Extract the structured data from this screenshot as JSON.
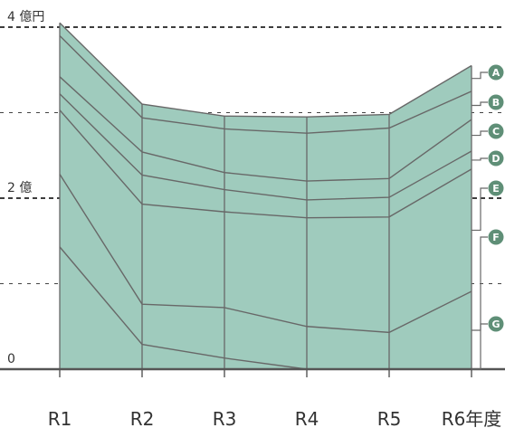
{
  "chart_data": {
    "type": "area",
    "categories": [
      "R1",
      "R2",
      "R3",
      "R4",
      "R5",
      "R6年度"
    ],
    "y_tick_labels": [
      {
        "value": 0,
        "label": "0"
      },
      {
        "value": 2,
        "label": "2 億"
      },
      {
        "value": 4,
        "label": "4 億円"
      }
    ],
    "y_minor_gridlines": [
      1,
      3
    ],
    "ylim": [
      0,
      4.14
    ],
    "grid": true,
    "legend_placement": "right",
    "cumulative_boundaries": [
      [
        4.05,
        3.1,
        2.96,
        2.95,
        2.98,
        3.55
      ],
      [
        3.9,
        2.94,
        2.81,
        2.76,
        2.82,
        3.25
      ],
      [
        3.42,
        2.54,
        2.3,
        2.2,
        2.23,
        2.92
      ],
      [
        3.22,
        2.27,
        2.1,
        1.98,
        2.01,
        2.55
      ],
      [
        3.03,
        1.93,
        1.84,
        1.77,
        1.78,
        2.34
      ],
      [
        2.28,
        0.76,
        0.72,
        0.5,
        0.43,
        0.91
      ],
      [
        1.43,
        0.29,
        0.13,
        0.0,
        0.0,
        0.0
      ]
    ],
    "series": [
      {
        "name": "A",
        "values": [
          0.15,
          0.16,
          0.15,
          0.19,
          0.16,
          0.3
        ]
      },
      {
        "name": "B",
        "values": [
          0.48,
          0.4,
          0.51,
          0.56,
          0.59,
          0.33
        ]
      },
      {
        "name": "C",
        "values": [
          0.2,
          0.27,
          0.2,
          0.22,
          0.22,
          0.37
        ]
      },
      {
        "name": "D",
        "values": [
          0.19,
          0.34,
          0.26,
          0.21,
          0.23,
          0.21
        ]
      },
      {
        "name": "E",
        "values": [
          0.75,
          1.17,
          1.12,
          1.27,
          1.35,
          1.43
        ]
      },
      {
        "name": "F",
        "values": [
          0.85,
          0.47,
          0.59,
          0.5,
          0.43,
          0.91
        ]
      },
      {
        "name": "G",
        "values": [
          1.43,
          0.29,
          0.13,
          0.0,
          0.0,
          0.0
        ]
      }
    ],
    "colors": {
      "fill": "#9fcbbd",
      "line": "#686868",
      "axis": "#555555",
      "legend_badge": "#5f8f77",
      "text": "#333333"
    }
  }
}
